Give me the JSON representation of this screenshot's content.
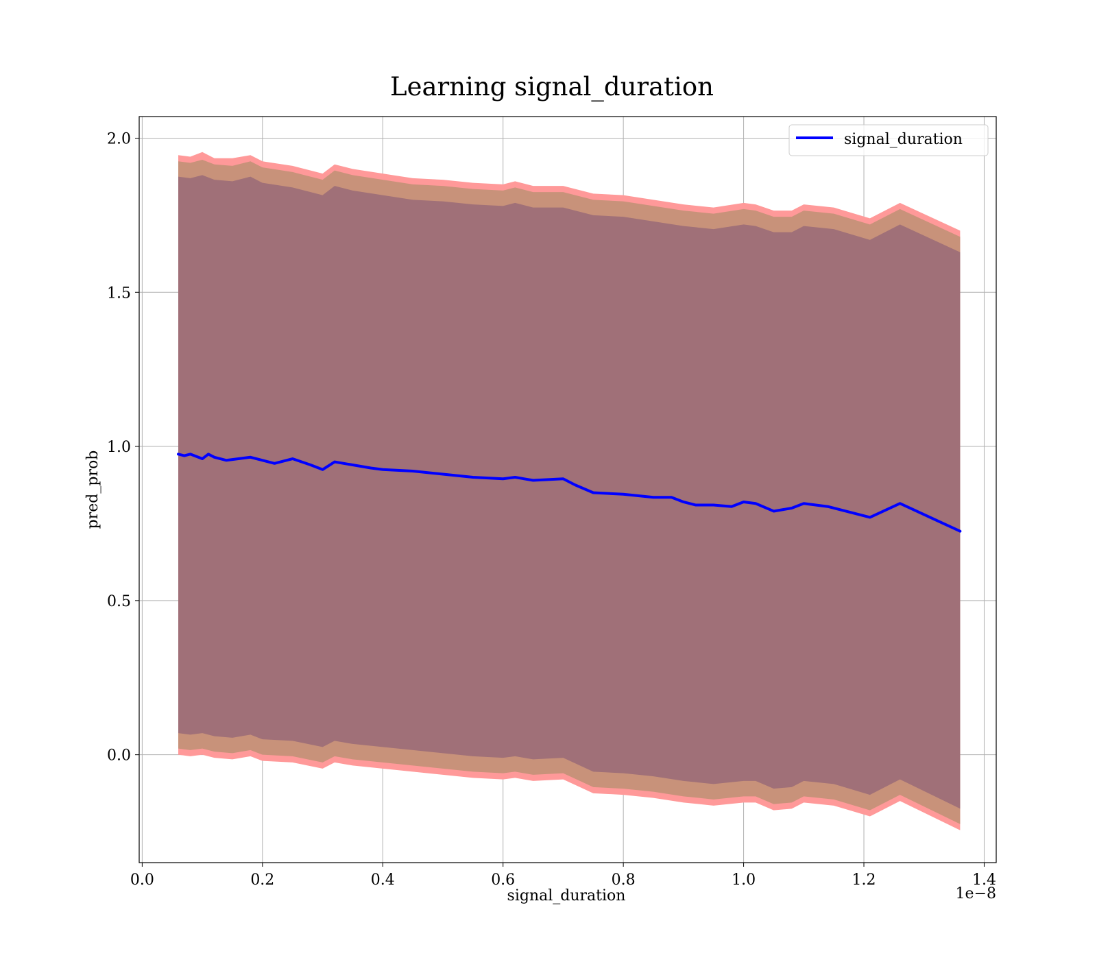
{
  "chart_data": {
    "type": "line",
    "title": "Learning signal_duration",
    "xlabel": "signal_duration",
    "ylabel": "pred_prob",
    "x_offset_text": "1e−8",
    "xlim": [
      -0.005,
      1.42
    ],
    "ylim": [
      -0.35,
      2.07
    ],
    "grid": true,
    "legend_position": "upper right",
    "x_ticks": [
      0.0,
      0.2,
      0.4,
      0.6,
      0.8,
      1.0,
      1.2,
      1.4
    ],
    "x_tick_labels": [
      "0.0",
      "0.2",
      "0.4",
      "0.6",
      "0.8",
      "1.0",
      "1.2",
      "1.4"
    ],
    "y_ticks": [
      0.0,
      0.5,
      1.0,
      1.5,
      2.0
    ],
    "y_tick_labels": [
      "0.0",
      "0.5",
      "1.0",
      "1.5",
      "2.0"
    ],
    "colors": {
      "line": "#0000ff",
      "outer_band": "#ff9999",
      "middle_band": "#c8927a",
      "inner_band": "#a07078",
      "grid": "#b0b0b0"
    },
    "series": [
      {
        "name": "signal_duration",
        "x": [
          0.06,
          0.07,
          0.08,
          0.1,
          0.11,
          0.12,
          0.14,
          0.16,
          0.18,
          0.2,
          0.22,
          0.25,
          0.28,
          0.3,
          0.32,
          0.35,
          0.38,
          0.4,
          0.45,
          0.5,
          0.55,
          0.6,
          0.62,
          0.65,
          0.7,
          0.72,
          0.75,
          0.8,
          0.85,
          0.88,
          0.9,
          0.92,
          0.95,
          0.98,
          1.0,
          1.02,
          1.05,
          1.08,
          1.1,
          1.14,
          1.18,
          1.21,
          1.26,
          1.36
        ],
        "y": [
          0.975,
          0.97,
          0.975,
          0.96,
          0.975,
          0.965,
          0.955,
          0.96,
          0.965,
          0.955,
          0.945,
          0.96,
          0.94,
          0.925,
          0.95,
          0.94,
          0.93,
          0.925,
          0.92,
          0.91,
          0.9,
          0.895,
          0.9,
          0.89,
          0.895,
          0.875,
          0.85,
          0.845,
          0.835,
          0.835,
          0.82,
          0.81,
          0.81,
          0.805,
          0.82,
          0.815,
          0.79,
          0.8,
          0.815,
          0.805,
          0.785,
          0.77,
          0.815,
          0.725
        ]
      }
    ],
    "bands": {
      "x": [
        0.06,
        0.08,
        0.1,
        0.12,
        0.15,
        0.18,
        0.2,
        0.25,
        0.3,
        0.32,
        0.35,
        0.4,
        0.45,
        0.5,
        0.55,
        0.6,
        0.62,
        0.65,
        0.7,
        0.75,
        0.8,
        0.85,
        0.9,
        0.95,
        1.0,
        1.02,
        1.05,
        1.08,
        1.1,
        1.15,
        1.21,
        1.26,
        1.36
      ],
      "outer_upper": [
        1.945,
        1.94,
        1.955,
        1.935,
        1.935,
        1.945,
        1.925,
        1.91,
        1.885,
        1.915,
        1.9,
        1.885,
        1.87,
        1.865,
        1.855,
        1.85,
        1.86,
        1.845,
        1.845,
        1.82,
        1.815,
        1.8,
        1.785,
        1.775,
        1.79,
        1.785,
        1.765,
        1.765,
        1.785,
        1.775,
        1.74,
        1.79,
        1.7
      ],
      "outer_lower": [
        0.0,
        -0.005,
        0.0,
        -0.01,
        -0.015,
        -0.005,
        -0.02,
        -0.025,
        -0.045,
        -0.025,
        -0.035,
        -0.045,
        -0.055,
        -0.065,
        -0.075,
        -0.08,
        -0.075,
        -0.085,
        -0.08,
        -0.125,
        -0.13,
        -0.14,
        -0.155,
        -0.165,
        -0.155,
        -0.155,
        -0.18,
        -0.175,
        -0.155,
        -0.165,
        -0.2,
        -0.15,
        -0.245
      ],
      "middle_upper": [
        1.925,
        1.92,
        1.93,
        1.915,
        1.91,
        1.925,
        1.905,
        1.89,
        1.865,
        1.895,
        1.88,
        1.865,
        1.85,
        1.845,
        1.835,
        1.83,
        1.84,
        1.825,
        1.825,
        1.8,
        1.795,
        1.78,
        1.765,
        1.755,
        1.77,
        1.765,
        1.745,
        1.745,
        1.765,
        1.755,
        1.72,
        1.77,
        1.68
      ],
      "middle_lower": [
        0.02,
        0.015,
        0.02,
        0.01,
        0.005,
        0.015,
        0.0,
        -0.005,
        -0.025,
        -0.005,
        -0.015,
        -0.025,
        -0.035,
        -0.045,
        -0.055,
        -0.06,
        -0.055,
        -0.065,
        -0.06,
        -0.105,
        -0.11,
        -0.12,
        -0.135,
        -0.145,
        -0.135,
        -0.135,
        -0.16,
        -0.155,
        -0.135,
        -0.145,
        -0.18,
        -0.13,
        -0.225
      ],
      "inner_upper": [
        1.875,
        1.87,
        1.88,
        1.865,
        1.86,
        1.875,
        1.855,
        1.84,
        1.815,
        1.845,
        1.83,
        1.815,
        1.8,
        1.795,
        1.785,
        1.78,
        1.79,
        1.775,
        1.775,
        1.75,
        1.745,
        1.73,
        1.715,
        1.705,
        1.72,
        1.715,
        1.695,
        1.695,
        1.715,
        1.705,
        1.67,
        1.72,
        1.63
      ],
      "inner_lower": [
        0.07,
        0.065,
        0.07,
        0.06,
        0.055,
        0.065,
        0.05,
        0.045,
        0.025,
        0.045,
        0.035,
        0.025,
        0.015,
        0.005,
        -0.005,
        -0.01,
        -0.005,
        -0.015,
        -0.01,
        -0.055,
        -0.06,
        -0.07,
        -0.085,
        -0.095,
        -0.085,
        -0.085,
        -0.11,
        -0.105,
        -0.085,
        -0.095,
        -0.13,
        -0.08,
        -0.175
      ]
    }
  }
}
